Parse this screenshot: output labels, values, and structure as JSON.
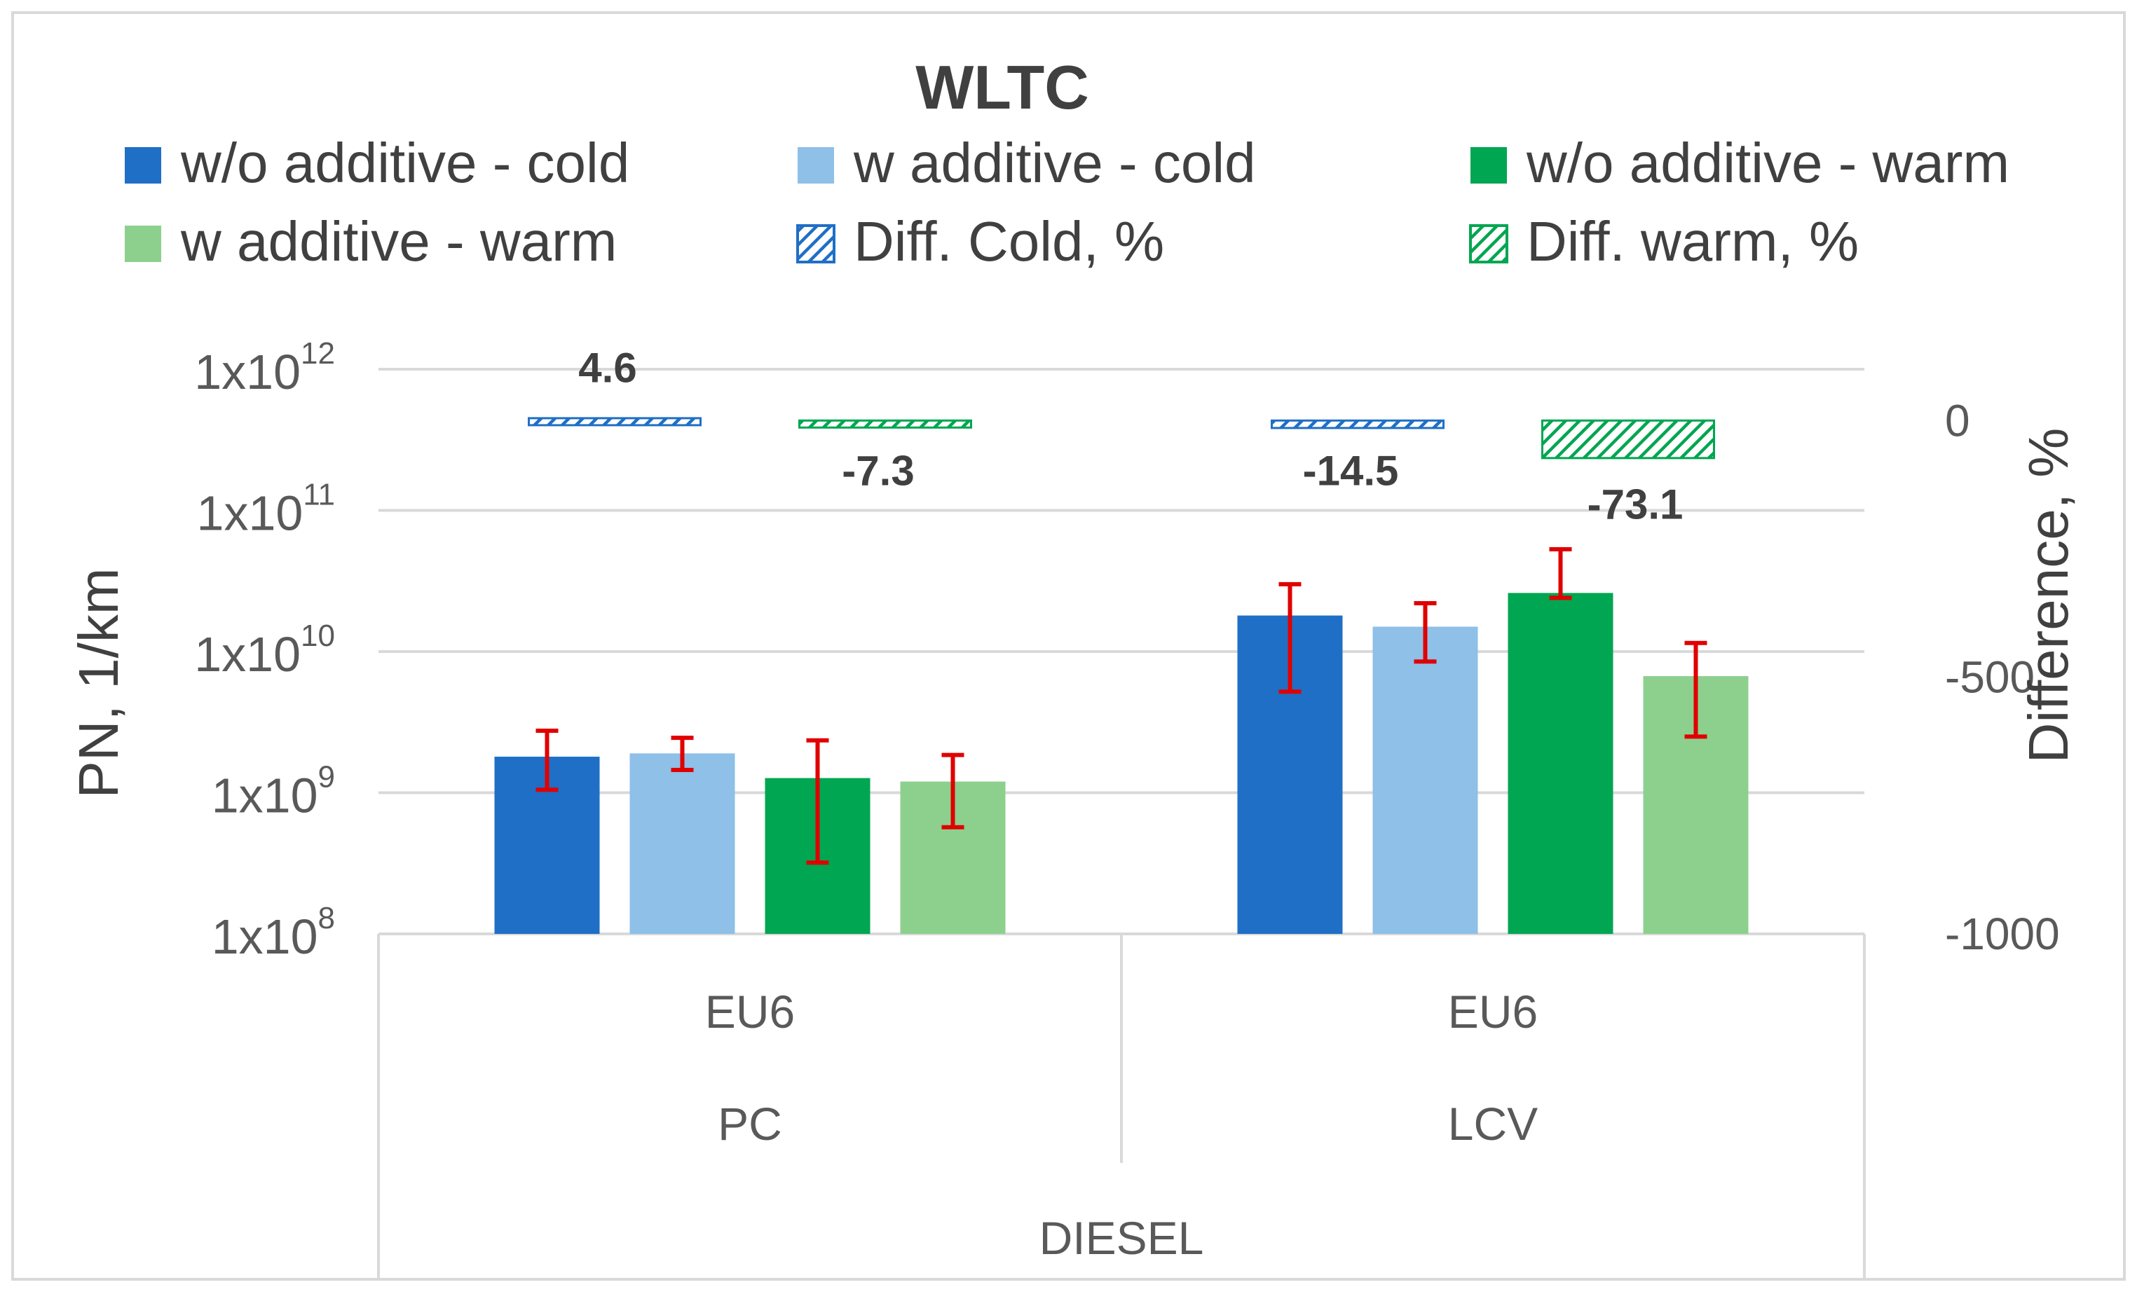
{
  "chart_data": {
    "type": "bar",
    "title": "WLTC",
    "ylabel": "PN, 1/km",
    "y2label": "Difference, %",
    "yscale": "log",
    "ylim": [
      100000000,
      1000000000000
    ],
    "y_ticks": [
      {
        "value": 100000000,
        "base": "1x10",
        "exp": "8"
      },
      {
        "value": 1000000000,
        "base": "1x10",
        "exp": "9"
      },
      {
        "value": 10000000000,
        "base": "1x10",
        "exp": "10"
      },
      {
        "value": 100000000000,
        "base": "1x10",
        "exp": "11"
      },
      {
        "value": 1000000000000,
        "base": "1x10",
        "exp": "12"
      }
    ],
    "y2lim": [
      -1000,
      100
    ],
    "y2_ticks": [
      {
        "value": 0,
        "label": "0"
      },
      {
        "value": -500,
        "label": "-500"
      },
      {
        "value": -1000,
        "label": "-1000"
      }
    ],
    "grid": true,
    "legend_position": "top",
    "categories": [
      {
        "level1": "EU6",
        "level2": "PC",
        "level3": "DIESEL"
      },
      {
        "level1": "EU6",
        "level2": "LCV",
        "level3": "DIESEL"
      }
    ],
    "series": [
      {
        "name": "w/o additive - cold",
        "color": "#1f6fc6",
        "values": [
          1800000000,
          18000000000
        ],
        "err_low": [
          1050000000,
          5200000000
        ],
        "err_high": [
          2750000000,
          30000000000
        ]
      },
      {
        "name": "w additive - cold",
        "color": "#8ec0e8",
        "values": [
          1900000000,
          15000000000
        ],
        "err_low": [
          1450000000,
          8500000000
        ],
        "err_high": [
          2450000000,
          22000000000
        ]
      },
      {
        "name": "w/o additive - warm",
        "color": "#00a651",
        "values": [
          1270000000,
          26000000000
        ],
        "err_low": [
          320000000,
          24000000000
        ],
        "err_high": [
          2350000000,
          53000000000
        ]
      },
      {
        "name": "w additive - warm",
        "color": "#8dd08e",
        "values": [
          1200000000,
          6700000000
        ],
        "err_low": [
          570000000,
          2500000000
        ],
        "err_high": [
          1850000000,
          11500000000
        ]
      }
    ],
    "difference_series": [
      {
        "name": "Diff. Cold, %",
        "color": "#1f6fc6",
        "values": [
          4.6,
          -14.5
        ],
        "labels": [
          "4.6",
          "-14.5"
        ]
      },
      {
        "name": "Diff. warm, %",
        "color": "#00a651",
        "values": [
          -7.3,
          -73.1
        ],
        "labels": [
          "-7.3",
          "-73.1"
        ]
      }
    ],
    "error_bar_color": "#e00000"
  }
}
